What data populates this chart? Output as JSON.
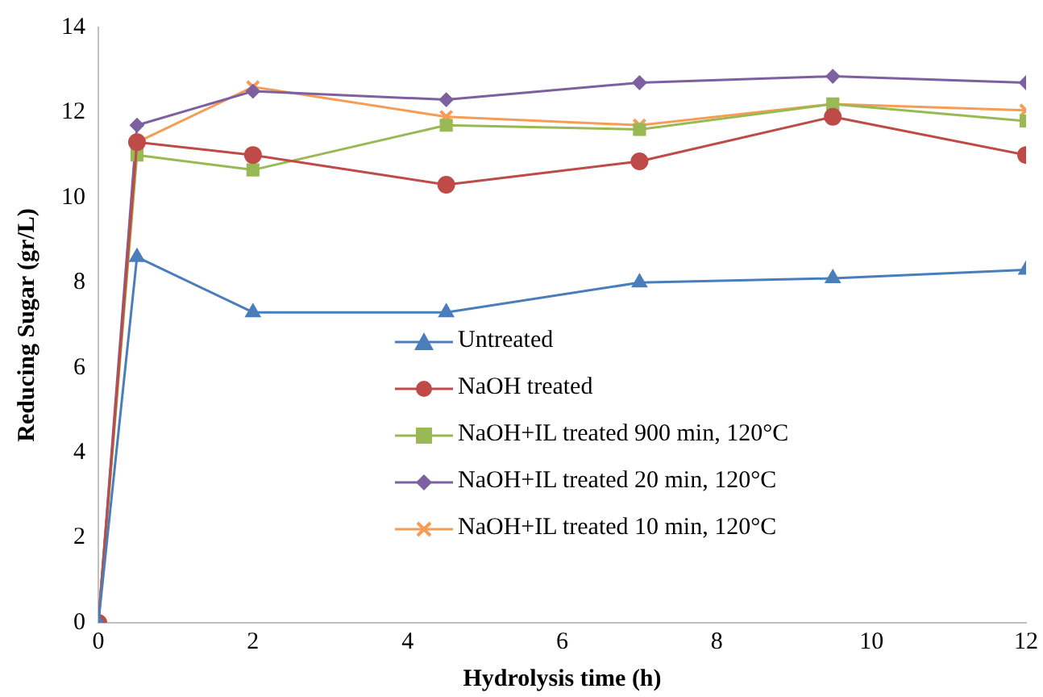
{
  "chart_data": {
    "type": "line",
    "xlabel": "Hydrolysis time (h)",
    "ylabel": "Reducing Sugar (gr/L)",
    "x": [
      0,
      0.5,
      2,
      4.5,
      7,
      9.5,
      12
    ],
    "xlim": [
      0,
      12
    ],
    "xticks": [
      0,
      2,
      4,
      6,
      8,
      10,
      12
    ],
    "ylim": [
      0,
      14
    ],
    "yticks": [
      0,
      2,
      4,
      6,
      8,
      10,
      12,
      14
    ],
    "grid": false,
    "legend": "bottom",
    "line_style": "solid",
    "series": [
      {
        "name": "Untreated",
        "color": "#4a7ebb",
        "marker": "triangle",
        "values": [
          0,
          8.6,
          7.3,
          7.3,
          8.0,
          8.1,
          8.3
        ]
      },
      {
        "name": "NaOH treated",
        "color": "#be4b48",
        "marker": "circle",
        "values": [
          0,
          11.3,
          11.0,
          10.3,
          10.85,
          11.9,
          11.0
        ]
      },
      {
        "name": "NaOH+IL treated 900 min, 120°C",
        "color": "#98b954",
        "marker": "square",
        "values": [
          0,
          11.0,
          10.65,
          11.7,
          11.6,
          12.2,
          11.8
        ]
      },
      {
        "name": "NaOH+IL treated 20 min, 120°C",
        "color": "#7d60a0",
        "marker": "diamond",
        "values": [
          0,
          11.7,
          12.5,
          12.3,
          12.7,
          12.85,
          12.7
        ]
      },
      {
        "name": "NaOH+IL treated 10 min, 120°C",
        "color": "#f59d56",
        "marker": "cross",
        "values": [
          0,
          11.3,
          12.6,
          11.9,
          11.7,
          12.2,
          12.05
        ]
      }
    ]
  }
}
